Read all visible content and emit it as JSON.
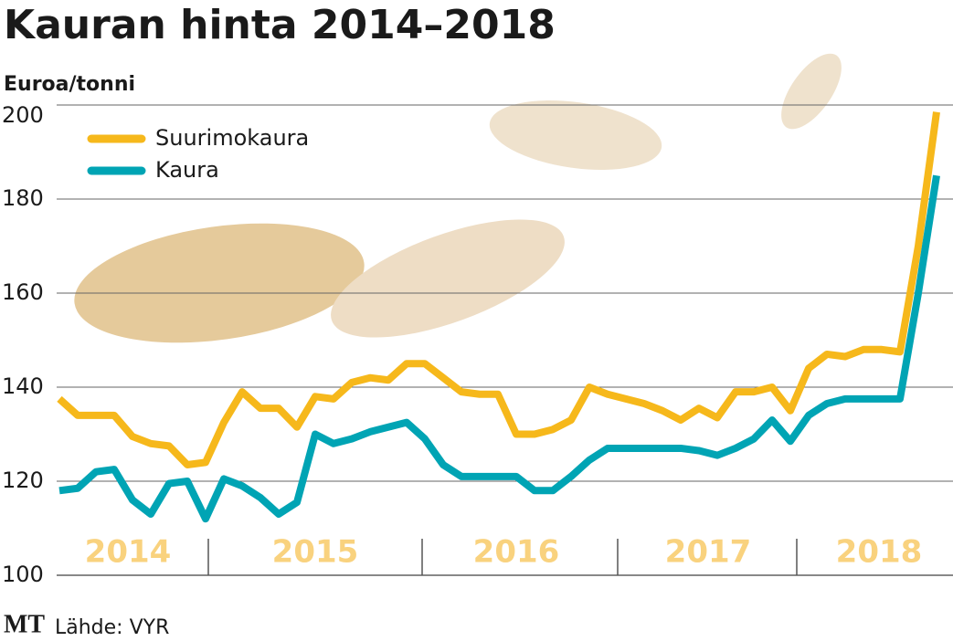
{
  "chart_data": {
    "type": "line",
    "title": "Kauran hinta 2014–2018",
    "y_label": "Euroa/tonni",
    "source": "Lähde: VYR",
    "logo": "MT",
    "year_labels": [
      "2014",
      "2015",
      "2016",
      "2017",
      "2018"
    ],
    "ylim": [
      100,
      200
    ],
    "yticks": [
      100,
      120,
      140,
      160,
      180,
      200
    ],
    "grid": true,
    "legend": "upper left",
    "series": [
      {
        "name": "Suurimokaura",
        "color": "#f6b81b",
        "values": [
          137.5,
          134,
          134,
          134,
          129.5,
          128,
          127.5,
          123.5,
          124,
          132.5,
          139,
          135.5,
          135.5,
          131.5,
          138,
          137.5,
          141,
          142,
          141.5,
          145,
          145,
          142,
          139,
          138.5,
          138.5,
          130,
          130,
          131,
          133,
          140,
          138.5,
          137.5,
          136.5,
          135,
          133,
          135.5,
          133.5,
          139,
          139,
          140,
          135,
          144,
          147,
          146.5,
          148,
          148,
          147.5,
          170,
          198.5
        ]
      },
      {
        "name": "Kaura",
        "color": "#00a4b4",
        "values": [
          118,
          118.5,
          122,
          122.5,
          116,
          113,
          119.5,
          120,
          112,
          120.5,
          119,
          116.5,
          113,
          115.5,
          130,
          128,
          129,
          130.5,
          131.5,
          132.5,
          129,
          123.5,
          121,
          121,
          121,
          121,
          118,
          118,
          121,
          124.5,
          127,
          127,
          127,
          127,
          127,
          126.5,
          125.5,
          127,
          129,
          133,
          128.5,
          134,
          136.5,
          137.5,
          137.5,
          137.5,
          137.5,
          160,
          185
        ]
      }
    ]
  }
}
